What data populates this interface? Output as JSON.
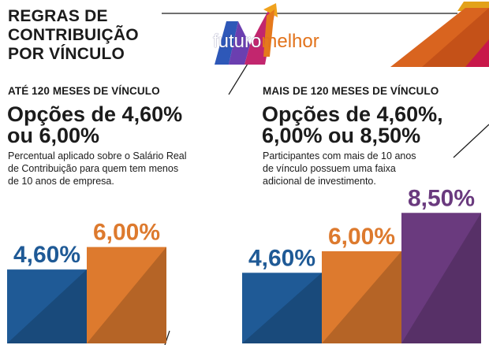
{
  "header": {
    "title": "REGRAS DE\nCONTRIBUIÇÃO\nPOR VÍNCULO",
    "logo": {
      "word1": "futuro",
      "word2": "melhor"
    }
  },
  "sections": [
    {
      "label": "ATÉ 120 MESES DE VÍNCULO",
      "heading_line1": "Opções de 4,60%",
      "heading_line2": "ou 6,00%",
      "desc_line1": "Percentual aplicado sobre o Salário Real",
      "desc_line2": "de Contribuição para quem tem menos",
      "desc_line3": "de 10 anos de empresa."
    },
    {
      "label": "MAIS DE 120 MESES DE VÍNCULO",
      "heading_line1": "Opções de 4,60%,",
      "heading_line2": "6,00% ou 8,50%",
      "desc_line1": "Participantes com mais de 10 anos",
      "desc_line2": "de vínculo possuem uma faixa",
      "desc_line3": "adicional de investimento."
    }
  ],
  "chart_data": [
    {
      "type": "bar",
      "categories": [
        "4,60%",
        "6,00%"
      ],
      "values": [
        4.6,
        6.0
      ],
      "labels": [
        "4,60%",
        "6,00%"
      ],
      "colors": [
        "#1f5a96",
        "#dd7a2e"
      ]
    },
    {
      "type": "bar",
      "categories": [
        "4,60%",
        "6,00%",
        "8,50%"
      ],
      "values": [
        4.6,
        6.0,
        8.5
      ],
      "labels": [
        "4,60%",
        "6,00%",
        "8,50%"
      ],
      "colors": [
        "#1f5a96",
        "#dd7a2e",
        "#6a3a7e"
      ]
    }
  ],
  "colors": {
    "blue": "#1f5a96",
    "orange": "#dd7a2e",
    "purple": "#6a3a7e",
    "text": "#1b1b1b"
  }
}
